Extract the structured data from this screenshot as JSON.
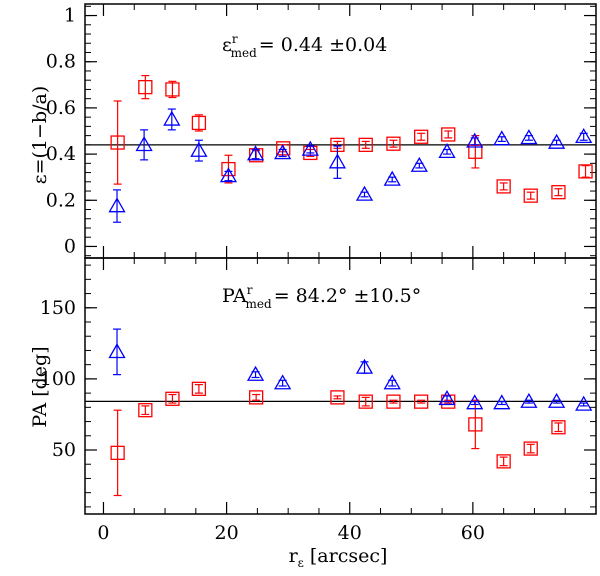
{
  "chart_data": [
    {
      "type": "scatter",
      "panel": "top",
      "ylabel": "ε=(1−b/a)",
      "ylim": [
        -0.05,
        1.05
      ],
      "yticks": [
        0,
        0.2,
        0.4,
        0.6,
        0.8,
        1
      ],
      "ytick_labels": [
        "0",
        "0.2",
        "0.4",
        "0.6",
        "0.8",
        "1"
      ],
      "annotation": {
        "symbol": "ε",
        "sup": "r",
        "sub": "med",
        "value_text": "= 0.44 ±0.04"
      },
      "reference_line": 0.44,
      "series": [
        {
          "name": "red squares",
          "color": "#ff0000",
          "marker": "square",
          "points": [
            {
              "x": 2.3,
              "y": 0.45,
              "err": 0.18
            },
            {
              "x": 6.8,
              "y": 0.69,
              "err": 0.05
            },
            {
              "x": 11.2,
              "y": 0.68,
              "err": 0.035
            },
            {
              "x": 15.5,
              "y": 0.535,
              "err": 0.035
            },
            {
              "x": 20.3,
              "y": 0.335,
              "err": 0.06
            },
            {
              "x": 24.8,
              "y": 0.395,
              "err": 0.02
            },
            {
              "x": 29.2,
              "y": 0.425,
              "err": 0.015
            },
            {
              "x": 33.6,
              "y": 0.405,
              "err": 0.015
            },
            {
              "x": 38.0,
              "y": 0.44,
              "err": 0.015
            },
            {
              "x": 42.6,
              "y": 0.44,
              "err": 0.015
            },
            {
              "x": 47.1,
              "y": 0.445,
              "err": 0.015
            },
            {
              "x": 51.6,
              "y": 0.475,
              "err": 0.015
            },
            {
              "x": 56.0,
              "y": 0.485,
              "err": 0.015
            },
            {
              "x": 60.4,
              "y": 0.41,
              "err": 0.07
            },
            {
              "x": 65.0,
              "y": 0.26,
              "err": 0.015
            },
            {
              "x": 69.4,
              "y": 0.22,
              "err": 0.015
            },
            {
              "x": 73.9,
              "y": 0.235,
              "err": 0.015
            },
            {
              "x": 78.3,
              "y": 0.325,
              "err": 0.025
            }
          ]
        },
        {
          "name": "blue triangles",
          "color": "#0000ff",
          "marker": "triangle",
          "points": [
            {
              "x": 2.2,
              "y": 0.175,
              "err": 0.07
            },
            {
              "x": 6.6,
              "y": 0.44,
              "err": 0.065
            },
            {
              "x": 11.1,
              "y": 0.55,
              "err": 0.045
            },
            {
              "x": 15.5,
              "y": 0.415,
              "err": 0.045
            },
            {
              "x": 20.3,
              "y": 0.305,
              "err": 0.02
            },
            {
              "x": 24.7,
              "y": 0.4,
              "err": 0.02
            },
            {
              "x": 29.1,
              "y": 0.405,
              "err": 0.015
            },
            {
              "x": 33.6,
              "y": 0.42,
              "err": 0.015
            },
            {
              "x": 38.0,
              "y": 0.365,
              "err": 0.07
            },
            {
              "x": 42.4,
              "y": 0.225,
              "err": 0.01
            },
            {
              "x": 46.9,
              "y": 0.29,
              "err": 0.01
            },
            {
              "x": 51.3,
              "y": 0.35,
              "err": 0.01
            },
            {
              "x": 55.8,
              "y": 0.41,
              "err": 0.01
            },
            {
              "x": 60.3,
              "y": 0.455,
              "err": 0.015
            },
            {
              "x": 64.7,
              "y": 0.465,
              "err": 0.01
            },
            {
              "x": 69.1,
              "y": 0.47,
              "err": 0.01
            },
            {
              "x": 73.6,
              "y": 0.45,
              "err": 0.01
            },
            {
              "x": 78.0,
              "y": 0.475,
              "err": 0.015
            }
          ]
        }
      ]
    },
    {
      "type": "scatter",
      "panel": "bottom",
      "ylabel": "PA [deg]",
      "xlabel_symbol": "r",
      "xlabel_sub": "ε",
      "xlabel_unit": "[arcsec]",
      "xlim": [
        -3,
        80
      ],
      "ylim": [
        5,
        185
      ],
      "xticks": [
        0,
        20,
        40,
        60
      ],
      "xtick_labels": [
        "0",
        "20",
        "40",
        "60"
      ],
      "yticks": [
        50,
        100,
        150
      ],
      "ytick_labels": [
        "50",
        "100",
        "150"
      ],
      "annotation": {
        "symbol": "PA",
        "sup": "r",
        "sub": "med",
        "value_text": "= 84.2° ±10.5°"
      },
      "reference_line": 84.2,
      "series": [
        {
          "name": "red squares",
          "color": "#ff0000",
          "marker": "square",
          "points": [
            {
              "x": 2.3,
              "y": 48,
              "err": 30
            },
            {
              "x": 6.8,
              "y": 78,
              "err": 3
            },
            {
              "x": 11.2,
              "y": 86,
              "err": 3
            },
            {
              "x": 15.5,
              "y": 93,
              "err": 3
            },
            {
              "x": 24.8,
              "y": 87,
              "err": 2
            },
            {
              "x": 38.0,
              "y": 87,
              "err": 1
            },
            {
              "x": 42.6,
              "y": 84,
              "err": 3
            },
            {
              "x": 47.1,
              "y": 84,
              "err": 1
            },
            {
              "x": 51.6,
              "y": 84,
              "err": 1
            },
            {
              "x": 56.0,
              "y": 84,
              "err": 1
            },
            {
              "x": 60.4,
              "y": 68,
              "err": 17
            },
            {
              "x": 65.0,
              "y": 42,
              "err": 3
            },
            {
              "x": 69.4,
              "y": 51,
              "err": 3
            },
            {
              "x": 73.9,
              "y": 66,
              "err": 3
            }
          ]
        },
        {
          "name": "blue triangles",
          "color": "#0000ff",
          "marker": "triangle",
          "points": [
            {
              "x": 2.2,
              "y": 119,
              "err": 16
            },
            {
              "x": 24.7,
              "y": 103,
              "err": 2
            },
            {
              "x": 29.1,
              "y": 97,
              "err": 2
            },
            {
              "x": 42.4,
              "y": 108,
              "err": 4
            },
            {
              "x": 46.9,
              "y": 97,
              "err": 2
            },
            {
              "x": 55.8,
              "y": 86,
              "err": 2
            },
            {
              "x": 60.3,
              "y": 83,
              "err": 1
            },
            {
              "x": 64.7,
              "y": 83,
              "err": 1
            },
            {
              "x": 69.1,
              "y": 84,
              "err": 1
            },
            {
              "x": 73.6,
              "y": 84,
              "err": 1
            },
            {
              "x": 78.0,
              "y": 82,
              "err": 1
            }
          ]
        }
      ]
    }
  ]
}
